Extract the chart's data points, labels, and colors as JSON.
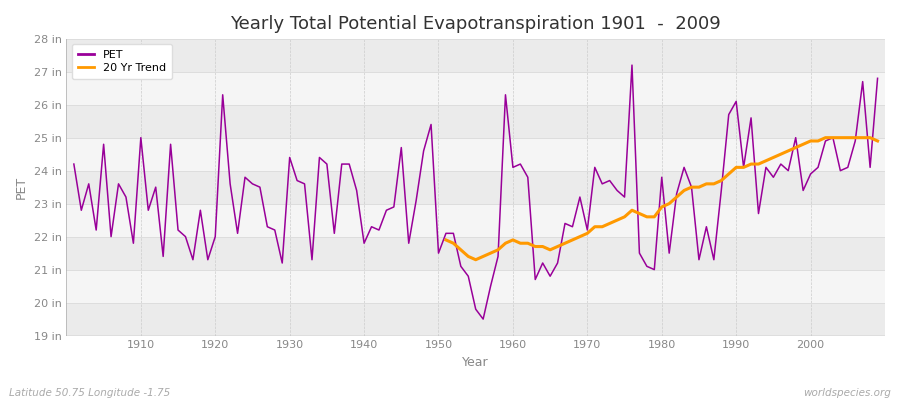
{
  "title": "Yearly Total Potential Evapotranspiration 1901  -  2009",
  "xlabel": "Year",
  "ylabel": "PET",
  "lat_lon_label": "Latitude 50.75 Longitude -1.75",
  "watermark": "worldspecies.org",
  "years": [
    1901,
    1902,
    1903,
    1904,
    1905,
    1906,
    1907,
    1908,
    1909,
    1910,
    1911,
    1912,
    1913,
    1914,
    1915,
    1916,
    1917,
    1918,
    1919,
    1920,
    1921,
    1922,
    1923,
    1924,
    1925,
    1926,
    1927,
    1928,
    1929,
    1930,
    1931,
    1932,
    1933,
    1934,
    1935,
    1936,
    1937,
    1938,
    1939,
    1940,
    1941,
    1942,
    1943,
    1944,
    1945,
    1946,
    1947,
    1948,
    1949,
    1950,
    1951,
    1952,
    1953,
    1954,
    1955,
    1956,
    1957,
    1958,
    1959,
    1960,
    1961,
    1962,
    1963,
    1964,
    1965,
    1966,
    1967,
    1968,
    1969,
    1970,
    1971,
    1972,
    1973,
    1974,
    1975,
    1976,
    1977,
    1978,
    1979,
    1980,
    1981,
    1982,
    1983,
    1984,
    1985,
    1986,
    1987,
    1988,
    1989,
    1990,
    1991,
    1992,
    1993,
    1994,
    1995,
    1996,
    1997,
    1998,
    1999,
    2000,
    2001,
    2002,
    2003,
    2004,
    2005,
    2006,
    2007,
    2008,
    2009
  ],
  "pet_values": [
    24.2,
    22.8,
    23.6,
    22.2,
    24.8,
    22.0,
    23.6,
    23.2,
    21.8,
    25.0,
    22.8,
    23.5,
    21.4,
    24.8,
    22.2,
    22.0,
    21.3,
    22.8,
    21.3,
    22.0,
    26.3,
    23.6,
    22.1,
    23.8,
    23.6,
    23.5,
    22.3,
    22.2,
    21.2,
    24.4,
    23.7,
    23.6,
    21.3,
    24.4,
    24.2,
    22.1,
    24.2,
    24.2,
    23.4,
    21.8,
    22.3,
    22.2,
    22.8,
    22.9,
    24.7,
    21.8,
    23.1,
    24.6,
    25.4,
    21.5,
    22.1,
    22.1,
    21.1,
    20.8,
    19.8,
    19.5,
    20.5,
    21.4,
    26.3,
    24.1,
    24.2,
    23.8,
    20.7,
    21.2,
    20.8,
    21.2,
    22.4,
    22.3,
    23.2,
    22.2,
    24.1,
    23.6,
    23.7,
    23.4,
    23.2,
    27.2,
    21.5,
    21.1,
    21.0,
    23.8,
    21.5,
    23.3,
    24.1,
    23.5,
    21.3,
    22.3,
    21.3,
    23.4,
    25.7,
    26.1,
    24.1,
    25.6,
    22.7,
    24.1,
    23.8,
    24.2,
    24.0,
    25.0,
    23.4,
    23.9,
    24.1,
    24.9,
    25.0,
    24.0,
    24.1,
    24.9,
    26.7,
    24.1,
    26.8
  ],
  "trend_years": [
    1951,
    1952,
    1953,
    1954,
    1955,
    1956,
    1957,
    1958,
    1959,
    1960,
    1961,
    1962,
    1963,
    1964,
    1965,
    1966,
    1967,
    1968,
    1969,
    1970,
    1971,
    1972,
    1973,
    1974,
    1975,
    1976,
    1977,
    1978,
    1979,
    1980,
    1981,
    1982,
    1983,
    1984,
    1985,
    1986,
    1987,
    1988,
    1989,
    1990,
    1991,
    1992,
    1993,
    1994,
    1995,
    1996,
    1997,
    1998,
    1999,
    2000,
    2001,
    2002,
    2003,
    2004,
    2005,
    2006,
    2007,
    2008,
    2009
  ],
  "trend_values": [
    21.9,
    21.8,
    21.6,
    21.4,
    21.3,
    21.4,
    21.5,
    21.6,
    21.8,
    21.9,
    21.8,
    21.8,
    21.7,
    21.7,
    21.6,
    21.7,
    21.8,
    21.9,
    22.0,
    22.1,
    22.3,
    22.3,
    22.4,
    22.5,
    22.6,
    22.8,
    22.7,
    22.6,
    22.6,
    22.9,
    23.0,
    23.2,
    23.4,
    23.5,
    23.5,
    23.6,
    23.6,
    23.7,
    23.9,
    24.1,
    24.1,
    24.2,
    24.2,
    24.3,
    24.4,
    24.5,
    24.6,
    24.7,
    24.8,
    24.9,
    24.9,
    25.0,
    25.0,
    25.0,
    25.0,
    25.0,
    25.0,
    25.0,
    24.9
  ],
  "pet_color": "#990099",
  "trend_color": "#ff9900",
  "bg_color": "#ffffff",
  "plot_bg_color": "#f5f5f5",
  "band_color_light": "#ebebeb",
  "band_color_dark": "#f5f5f5",
  "grid_color_h": "#dddddd",
  "grid_color_v": "#cccccc",
  "ylim": [
    19,
    28
  ],
  "ytick_values": [
    19,
    20,
    21,
    22,
    23,
    24,
    25,
    26,
    27,
    28
  ],
  "ytick_labels": [
    "19 in",
    "20 in",
    "21 in",
    "22 in",
    "23 in",
    "24 in",
    "25 in",
    "26 in",
    "27 in",
    "28 in"
  ],
  "xlim": [
    1900,
    2010
  ],
  "xtick_values": [
    1910,
    1920,
    1930,
    1940,
    1950,
    1960,
    1970,
    1980,
    1990,
    2000
  ],
  "title_fontsize": 13,
  "axis_label_fontsize": 9,
  "tick_fontsize": 8,
  "legend_fontsize": 8
}
